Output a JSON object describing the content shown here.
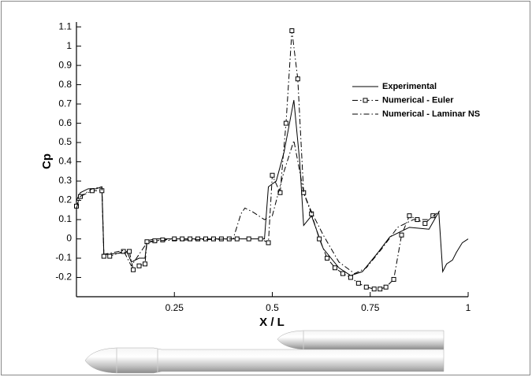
{
  "chart_data": {
    "type": "line",
    "xlabel": "X / L",
    "ylabel": "Cp",
    "xlim": [
      0,
      1
    ],
    "ylim": [
      -0.3,
      1.125
    ],
    "xticks": [
      0.25,
      0.5,
      0.75,
      1
    ],
    "yticks": [
      -0.2,
      -0.1,
      0,
      0.1,
      0.2,
      0.3,
      0.4,
      0.5,
      0.6,
      0.7,
      0.8,
      0.9,
      1,
      1.1
    ],
    "legend": "upper right",
    "series": [
      {
        "name": "Experimental",
        "color": "#000000",
        "dash": "solid",
        "marker": "none",
        "x": [
          0,
          0.01,
          0.03,
          0.05,
          0.065,
          0.07,
          0.08,
          0.13,
          0.14,
          0.16,
          0.175,
          0.18,
          0.2,
          0.3,
          0.4,
          0.48,
          0.49,
          0.51,
          0.53,
          0.555,
          0.57,
          0.58,
          0.6,
          0.63,
          0.67,
          0.7,
          0.73,
          0.77,
          0.8,
          0.85,
          0.9,
          0.925,
          0.935,
          0.945,
          0.96,
          0.97,
          0.985,
          1
        ],
        "values": [
          0.2,
          0.24,
          0.26,
          0.26,
          0.27,
          -0.08,
          -0.08,
          -0.07,
          -0.12,
          -0.1,
          -0.1,
          -0.01,
          0,
          0,
          0,
          0,
          0.27,
          0.3,
          0.45,
          0.72,
          0.4,
          0.07,
          0.12,
          -0.05,
          -0.15,
          -0.19,
          -0.17,
          -0.07,
          0.01,
          0.06,
          0.05,
          0.14,
          -0.17,
          -0.13,
          -0.11,
          -0.07,
          -0.02,
          0
        ]
      },
      {
        "name": "Numerical - Euler",
        "color": "#000000",
        "dash": "dashdot",
        "marker": "square",
        "x": [
          0,
          0.01,
          0.04,
          0.065,
          0.07,
          0.085,
          0.12,
          0.135,
          0.145,
          0.16,
          0.175,
          0.18,
          0.2,
          0.22,
          0.25,
          0.27,
          0.29,
          0.31,
          0.33,
          0.35,
          0.37,
          0.39,
          0.41,
          0.44,
          0.47,
          0.49,
          0.5,
          0.52,
          0.535,
          0.55,
          0.565,
          0.58,
          0.6,
          0.62,
          0.64,
          0.66,
          0.68,
          0.7,
          0.72,
          0.74,
          0.76,
          0.775,
          0.79,
          0.81,
          0.83,
          0.85,
          0.87,
          0.89,
          0.91
        ],
        "values": [
          0.17,
          0.22,
          0.25,
          0.25,
          -0.09,
          -0.09,
          -0.065,
          -0.065,
          -0.16,
          -0.14,
          -0.13,
          -0.015,
          -0.01,
          -0.005,
          0,
          0,
          0,
          0,
          0,
          0,
          0,
          0,
          0,
          0,
          0,
          -0.02,
          0.33,
          0.24,
          0.6,
          1.08,
          0.83,
          0.24,
          0.13,
          0,
          -0.1,
          -0.15,
          -0.18,
          -0.2,
          -0.23,
          -0.25,
          -0.26,
          -0.26,
          -0.25,
          -0.21,
          0.02,
          0.12,
          0.1,
          0.08,
          0.12
        ]
      },
      {
        "name": "Numerical - Laminar NS",
        "color": "#000000",
        "dash": "dashdot",
        "marker": "none",
        "x": [
          0,
          0.01,
          0.04,
          0.065,
          0.07,
          0.12,
          0.14,
          0.18,
          0.2,
          0.4,
          0.42,
          0.43,
          0.45,
          0.48,
          0.5,
          0.53,
          0.555,
          0.57,
          0.58,
          0.6,
          0.63,
          0.67,
          0.71,
          0.74,
          0.78,
          0.82,
          0.86,
          0.9,
          0.93
        ],
        "values": [
          0.16,
          0.22,
          0.26,
          0.27,
          -0.08,
          -0.06,
          -0.14,
          -0.02,
          -0.01,
          0,
          0.13,
          0.16,
          0.14,
          0.1,
          0.12,
          0.35,
          0.51,
          0.35,
          0.24,
          0.14,
          0.02,
          -0.12,
          -0.18,
          -0.15,
          -0.05,
          0.06,
          0.1,
          0.1,
          0.15
        ]
      }
    ]
  }
}
